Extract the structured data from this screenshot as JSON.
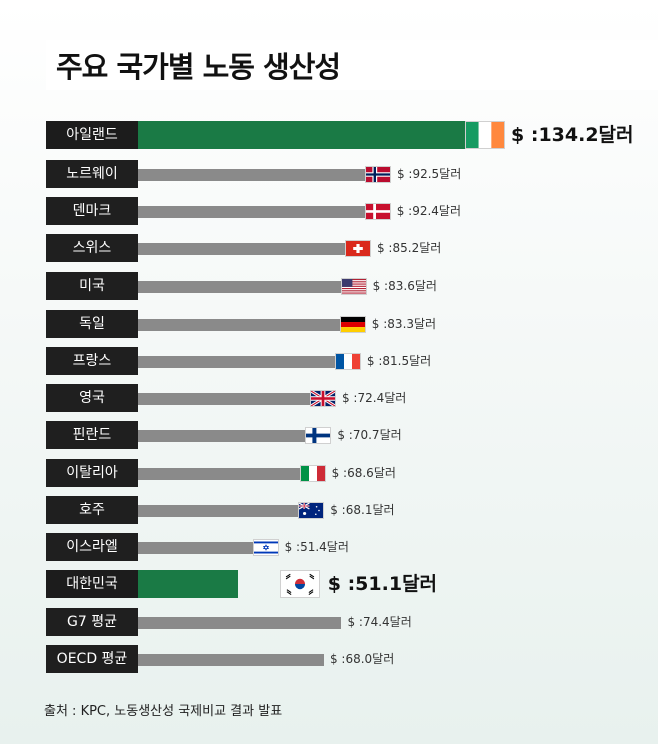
{
  "title": "주요 국가별 노동 생산성",
  "source": "출처 : KPC, 노동생산성 국제비교 결과 발표",
  "unit_prefix": "$ :",
  "unit_suffix": "달러",
  "colors": {
    "bar": "#8a8a8a",
    "highlight": "#1a7a45",
    "label_bg": "#1f1f1f"
  },
  "chart_data": {
    "type": "bar",
    "orientation": "horizontal",
    "title": "주요 국가별 노동 생산성",
    "xlim": [
      0,
      134.2
    ],
    "categories": [
      "아일랜드",
      "노르웨이",
      "덴마크",
      "스위스",
      "미국",
      "독일",
      "프랑스",
      "영국",
      "핀란드",
      "이탈리아",
      "호주",
      "이스라엘",
      "대한민국",
      "G7 평균",
      "OECD 평균"
    ],
    "values": [
      134.2,
      92.5,
      92.4,
      85.2,
      83.6,
      83.3,
      81.5,
      72.4,
      70.7,
      68.6,
      68.1,
      51.4,
      51.1,
      74.4,
      68.0
    ],
    "value_labels": [
      "134.2",
      "92.5",
      "92.4",
      "85.2",
      "83.6",
      "83.3",
      "81.5",
      "72.4",
      "70.7",
      "68.6",
      "68.1",
      "51.4",
      "51.1",
      "74.4",
      "68.0"
    ],
    "flags": [
      "ireland-flag",
      "norway-flag",
      "denmark-flag",
      "switzerland-flag",
      "usa-flag",
      "germany-flag",
      "france-flag",
      "uk-flag",
      "finland-flag",
      "italy-flag",
      "australia-flag",
      "israel-flag",
      "korea-flag",
      "",
      ""
    ],
    "highlighted": [
      "아일랜드",
      "대한민국"
    ]
  }
}
